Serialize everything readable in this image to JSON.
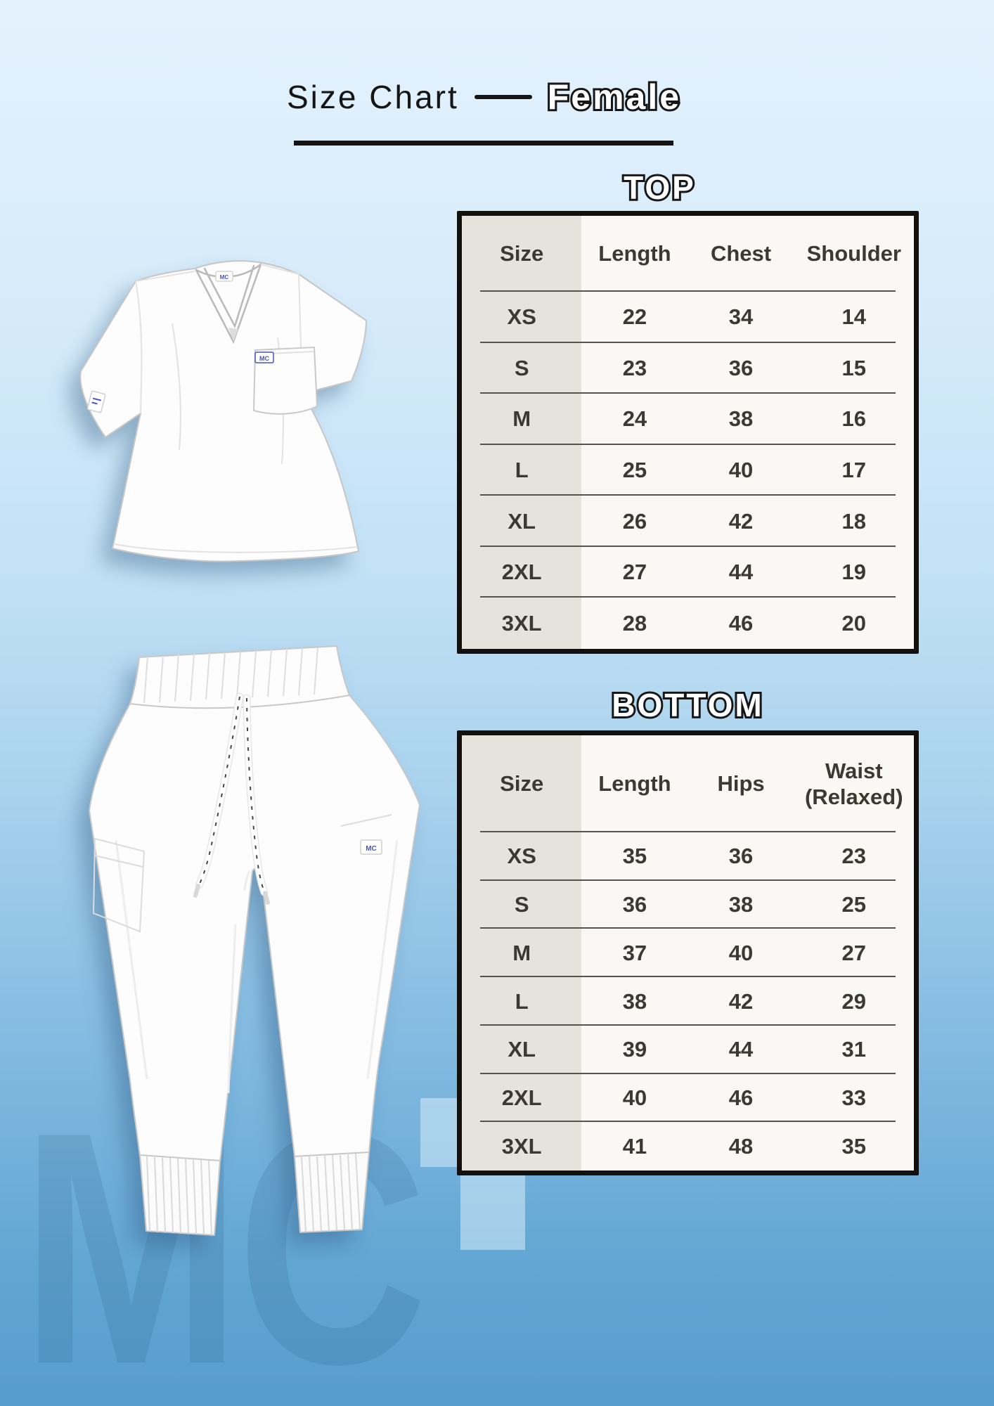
{
  "title": {
    "main": "Size Chart",
    "gender": "Female"
  },
  "sections": [
    {
      "heading": "TOP",
      "table": {
        "headers": [
          "Size",
          "Length",
          "Chest",
          "Shoulder"
        ],
        "rows": [
          [
            "XS",
            22,
            34,
            14
          ],
          [
            "S",
            23,
            36,
            15
          ],
          [
            "M",
            24,
            38,
            16
          ],
          [
            "L",
            25,
            40,
            17
          ],
          [
            "XL",
            26,
            42,
            18
          ],
          [
            "2XL",
            27,
            44,
            19
          ],
          [
            "3XL",
            28,
            46,
            20
          ]
        ]
      }
    },
    {
      "heading": "BOTTOM",
      "table": {
        "headers": [
          "Size",
          "Length",
          "Hips",
          "Waist (Relaxed)"
        ],
        "rows": [
          [
            "XS",
            35,
            36,
            23
          ],
          [
            "S",
            36,
            38,
            25
          ],
          [
            "M",
            37,
            40,
            27
          ],
          [
            "L",
            38,
            42,
            29
          ],
          [
            "XL",
            39,
            44,
            31
          ],
          [
            "2XL",
            40,
            46,
            33
          ],
          [
            "3XL",
            41,
            48,
            35
          ]
        ]
      }
    }
  ],
  "garments": {
    "brand_label": "MC",
    "top_description": "white v-neck scrub top",
    "bottom_description": "white jogger scrub pants"
  },
  "watermark": {
    "letters": "MC",
    "plus": "+"
  },
  "colors": {
    "background_top": "#e4f2fd",
    "background_bottom": "#579dcc",
    "table_background": "#faf8f4",
    "size_column": "#e6e3dc",
    "table_border": "#13110f",
    "table_text": "#3d3831",
    "divider": "#57524b",
    "label_blue": "#4553c2",
    "title_text": "#151515"
  }
}
